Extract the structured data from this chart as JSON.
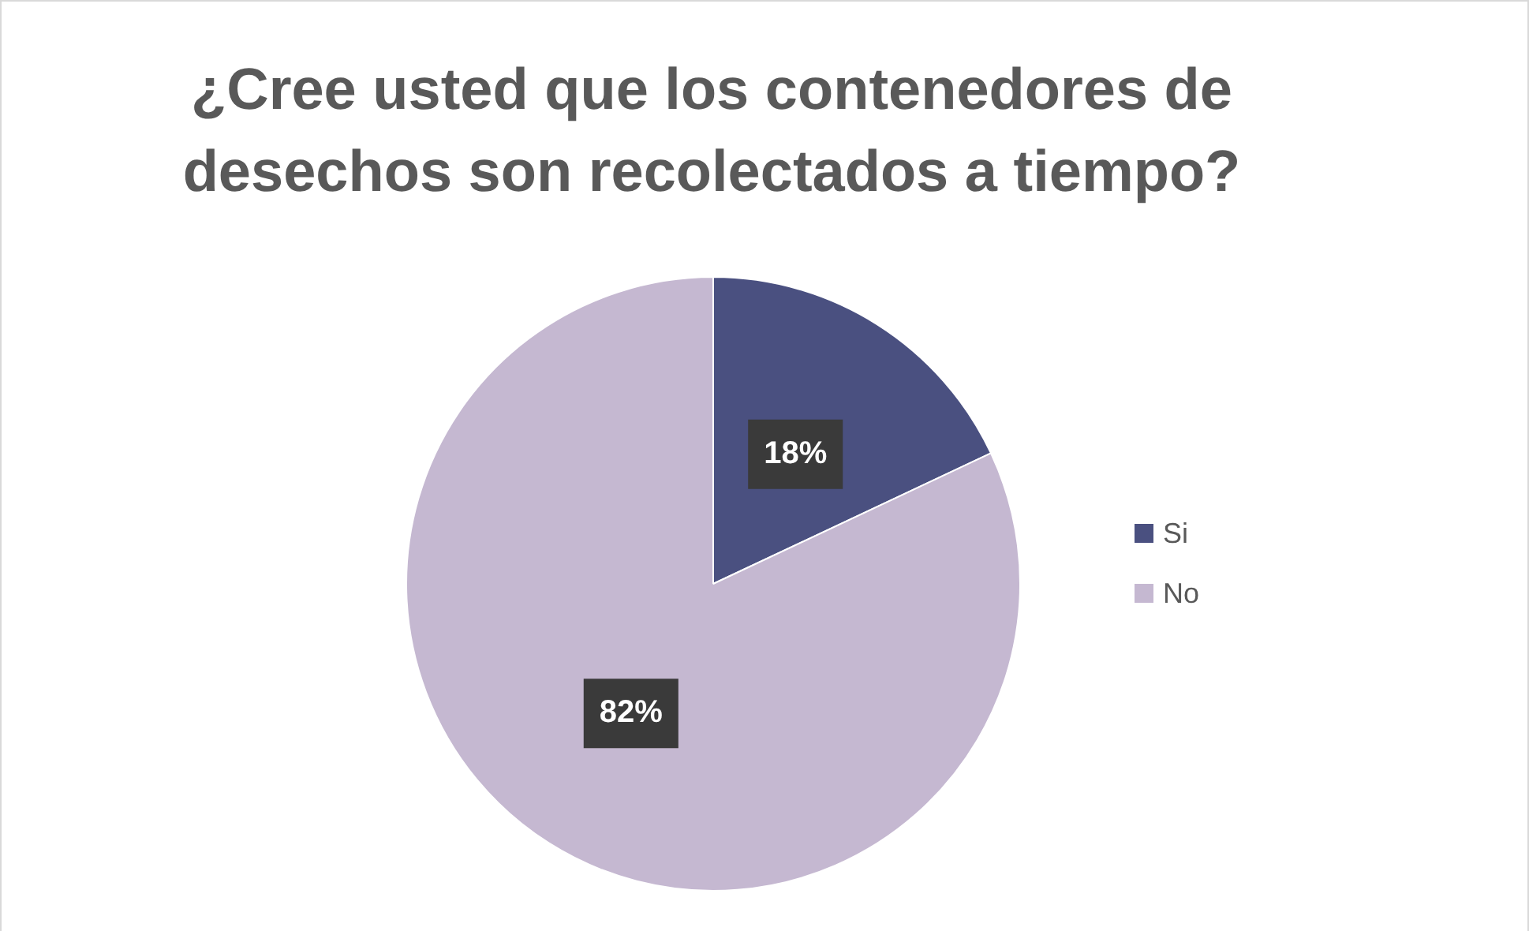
{
  "chart_data": {
    "type": "pie",
    "title": "¿Cree usted que los contenedores de desechos son recolectados a tiempo?",
    "categories": [
      "Si",
      "No"
    ],
    "values": [
      18,
      82
    ],
    "colors": [
      "#4a5080",
      "#c5b8d1"
    ],
    "value_labels": [
      "18%",
      "82%"
    ],
    "legend": "right"
  }
}
